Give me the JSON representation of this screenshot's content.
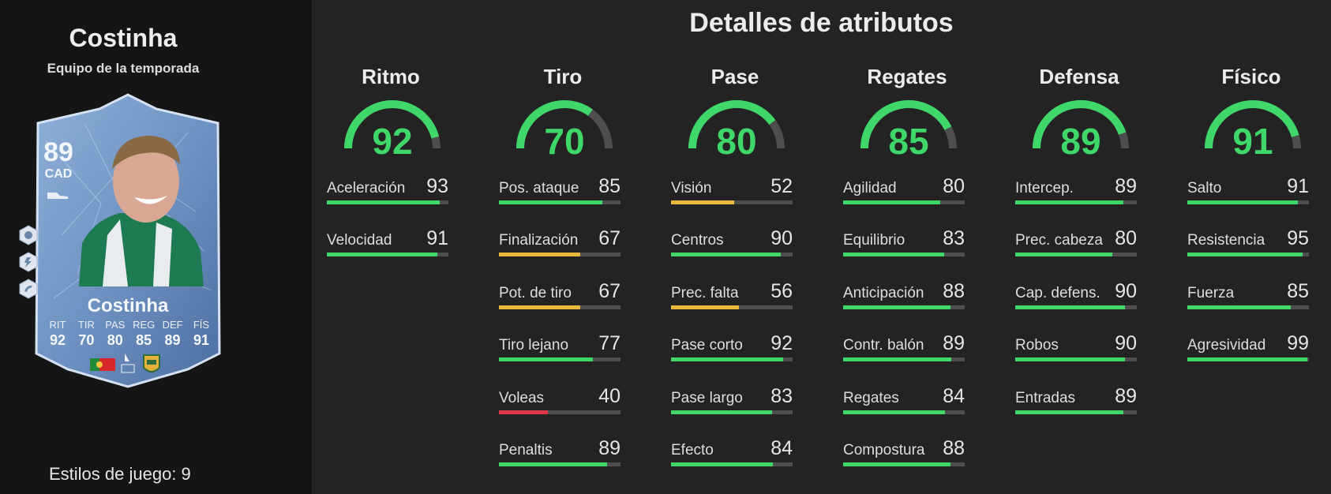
{
  "player": {
    "name": "Costinha",
    "subtitle": "Equipo de la temporada",
    "playstyles": "Estilos de juego: 9"
  },
  "card": {
    "rating": "89",
    "position": "CAD",
    "name": "Costinha",
    "stats": [
      {
        "label": "RIT",
        "value": "92"
      },
      {
        "label": "TIR",
        "value": "70"
      },
      {
        "label": "PAS",
        "value": "80"
      },
      {
        "label": "REG",
        "value": "85"
      },
      {
        "label": "DEF",
        "value": "89"
      },
      {
        "label": "FÍS",
        "value": "91"
      }
    ],
    "icons": [
      "playstyle-icon",
      "playstyle-icon",
      "playstyle-icon",
      "boot-icon",
      "portugal-flag-icon",
      "liga-portugal-logo",
      "rio-ave-crest"
    ]
  },
  "section_title": "Detalles de atributos",
  "colors": {
    "green": "#3fd66a",
    "yellow": "#e8b93a",
    "red": "#e0364a",
    "track": "#4d4e4d"
  },
  "categories": [
    {
      "title": "Ritmo",
      "value": "92",
      "attributes": [
        {
          "label": "Aceleración",
          "value": "93"
        },
        {
          "label": "Velocidad",
          "value": "91"
        }
      ]
    },
    {
      "title": "Tiro",
      "value": "70",
      "attributes": [
        {
          "label": "Pos. ataque",
          "value": "85"
        },
        {
          "label": "Finalización",
          "value": "67"
        },
        {
          "label": "Pot. de tiro",
          "value": "67"
        },
        {
          "label": "Tiro lejano",
          "value": "77"
        },
        {
          "label": "Voleas",
          "value": "40"
        },
        {
          "label": "Penaltis",
          "value": "89"
        }
      ]
    },
    {
      "title": "Pase",
      "value": "80",
      "attributes": [
        {
          "label": "Visión",
          "value": "52"
        },
        {
          "label": "Centros",
          "value": "90"
        },
        {
          "label": "Prec. falta",
          "value": "56"
        },
        {
          "label": "Pase corto",
          "value": "92"
        },
        {
          "label": "Pase largo",
          "value": "83"
        },
        {
          "label": "Efecto",
          "value": "84"
        }
      ]
    },
    {
      "title": "Regates",
      "value": "85",
      "attributes": [
        {
          "label": "Agilidad",
          "value": "80"
        },
        {
          "label": "Equilibrio",
          "value": "83"
        },
        {
          "label": "Anticipación",
          "value": "88"
        },
        {
          "label": "Contr. balón",
          "value": "89"
        },
        {
          "label": "Regates",
          "value": "84"
        },
        {
          "label": "Compostura",
          "value": "88"
        }
      ]
    },
    {
      "title": "Defensa",
      "value": "89",
      "attributes": [
        {
          "label": "Intercep.",
          "value": "89"
        },
        {
          "label": "Prec. cabeza",
          "value": "80"
        },
        {
          "label": "Cap. defens.",
          "value": "90"
        },
        {
          "label": "Robos",
          "value": "90"
        },
        {
          "label": "Entradas",
          "value": "89"
        }
      ]
    },
    {
      "title": "Físico",
      "value": "91",
      "attributes": [
        {
          "label": "Salto",
          "value": "91"
        },
        {
          "label": "Resistencia",
          "value": "95"
        },
        {
          "label": "Fuerza",
          "value": "85"
        },
        {
          "label": "Agresividad",
          "value": "99"
        }
      ]
    }
  ]
}
